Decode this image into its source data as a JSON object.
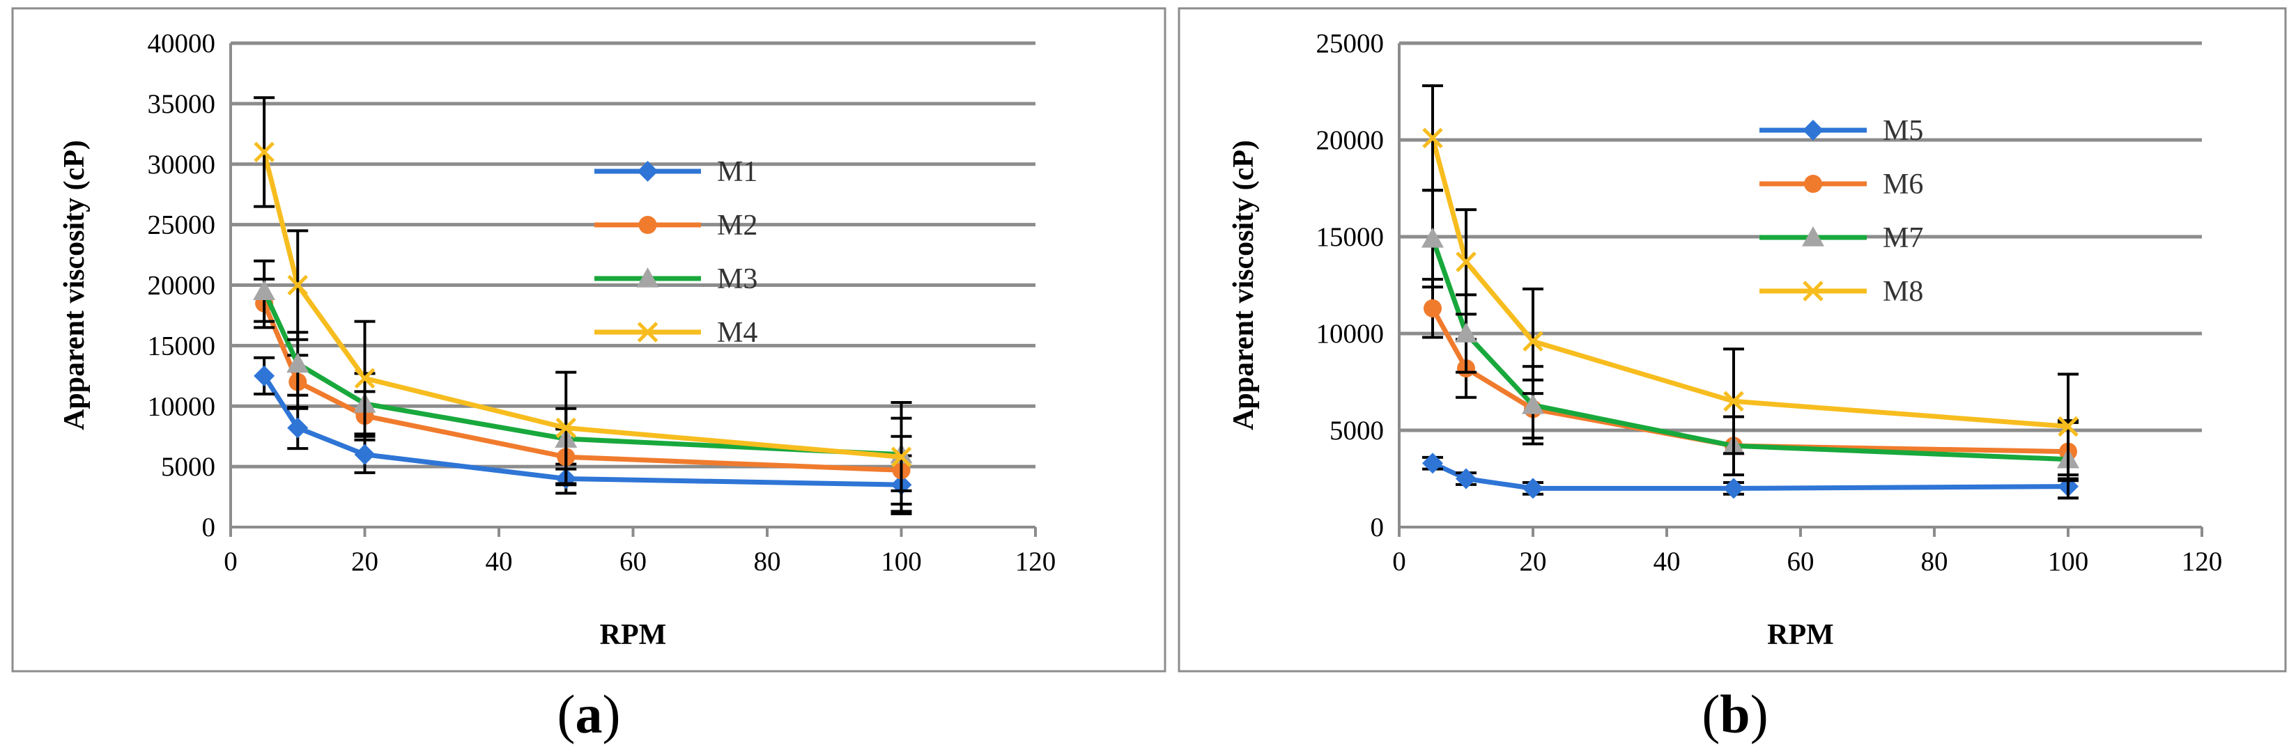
{
  "chart_data": [
    {
      "type": "line",
      "panel_label": "a",
      "xlabel": "RPM",
      "ylabel": "Apparent viscosity (cP)",
      "xlim": [
        0,
        120
      ],
      "ylim": [
        0,
        40000
      ],
      "x_ticks": [
        "0",
        "20",
        "40",
        "60",
        "80",
        "100",
        "120"
      ],
      "y_ticks": [
        "0",
        "5000",
        "10000",
        "15000",
        "20000",
        "25000",
        "30000",
        "35000",
        "40000"
      ],
      "grid": "horizontal",
      "legend_position": "center",
      "x": [
        5,
        10,
        20,
        50,
        100
      ],
      "series": [
        {
          "name": "M1",
          "color": "#2e75d6",
          "marker": "diamond",
          "values": [
            12500,
            8200,
            6000,
            4000,
            3500
          ],
          "errors": [
            1500,
            1700,
            1500,
            1200,
            2400
          ]
        },
        {
          "name": "M2",
          "color": "#f07b2d",
          "marker": "circle",
          "values": [
            18500,
            12000,
            9200,
            5800,
            4700
          ],
          "errors": [
            2000,
            2200,
            2000,
            2300,
            2800
          ]
        },
        {
          "name": "M3",
          "color": "#18a83c",
          "marker": "triangle",
          "values": [
            19500,
            13500,
            10200,
            7300,
            6000
          ],
          "errors": [
            2500,
            2600,
            2500,
            2500,
            3000
          ]
        },
        {
          "name": "M4",
          "color": "#f7bd1f",
          "marker": "x",
          "values": [
            31000,
            20000,
            12300,
            8200,
            5800
          ],
          "errors": [
            4500,
            4500,
            4700,
            4600,
            4500
          ]
        }
      ]
    },
    {
      "type": "line",
      "panel_label": "b",
      "xlabel": "RPM",
      "ylabel": "Apparent viscosity (cP)",
      "xlim": [
        0,
        120
      ],
      "ylim": [
        0,
        25000
      ],
      "x_ticks": [
        "0",
        "20",
        "40",
        "60",
        "80",
        "100",
        "120"
      ],
      "y_ticks": [
        "0",
        "5000",
        "10000",
        "15000",
        "20000",
        "25000"
      ],
      "grid": "horizontal",
      "legend_position": "top-center",
      "x": [
        5,
        10,
        20,
        50,
        100
      ],
      "series": [
        {
          "name": "M5",
          "color": "#2e75d6",
          "marker": "diamond",
          "values": [
            3300,
            2500,
            2000,
            2000,
            2100
          ],
          "errors": [
            300,
            300,
            300,
            300,
            600
          ]
        },
        {
          "name": "M6",
          "color": "#f07b2d",
          "marker": "circle",
          "values": [
            11300,
            8200,
            6100,
            4200,
            3900
          ],
          "errors": [
            1500,
            1500,
            1500,
            1500,
            1500
          ]
        },
        {
          "name": "M7",
          "color": "#18a83c",
          "marker": "triangle",
          "values": [
            14900,
            10000,
            6300,
            4200,
            3500
          ],
          "errors": [
            2500,
            2000,
            2000,
            1500,
            2000
          ]
        },
        {
          "name": "M8",
          "color": "#f7bd1f",
          "marker": "x",
          "values": [
            20100,
            13700,
            9600,
            6500,
            5200
          ],
          "errors": [
            2700,
            2700,
            2700,
            2700,
            2700
          ]
        }
      ]
    }
  ]
}
